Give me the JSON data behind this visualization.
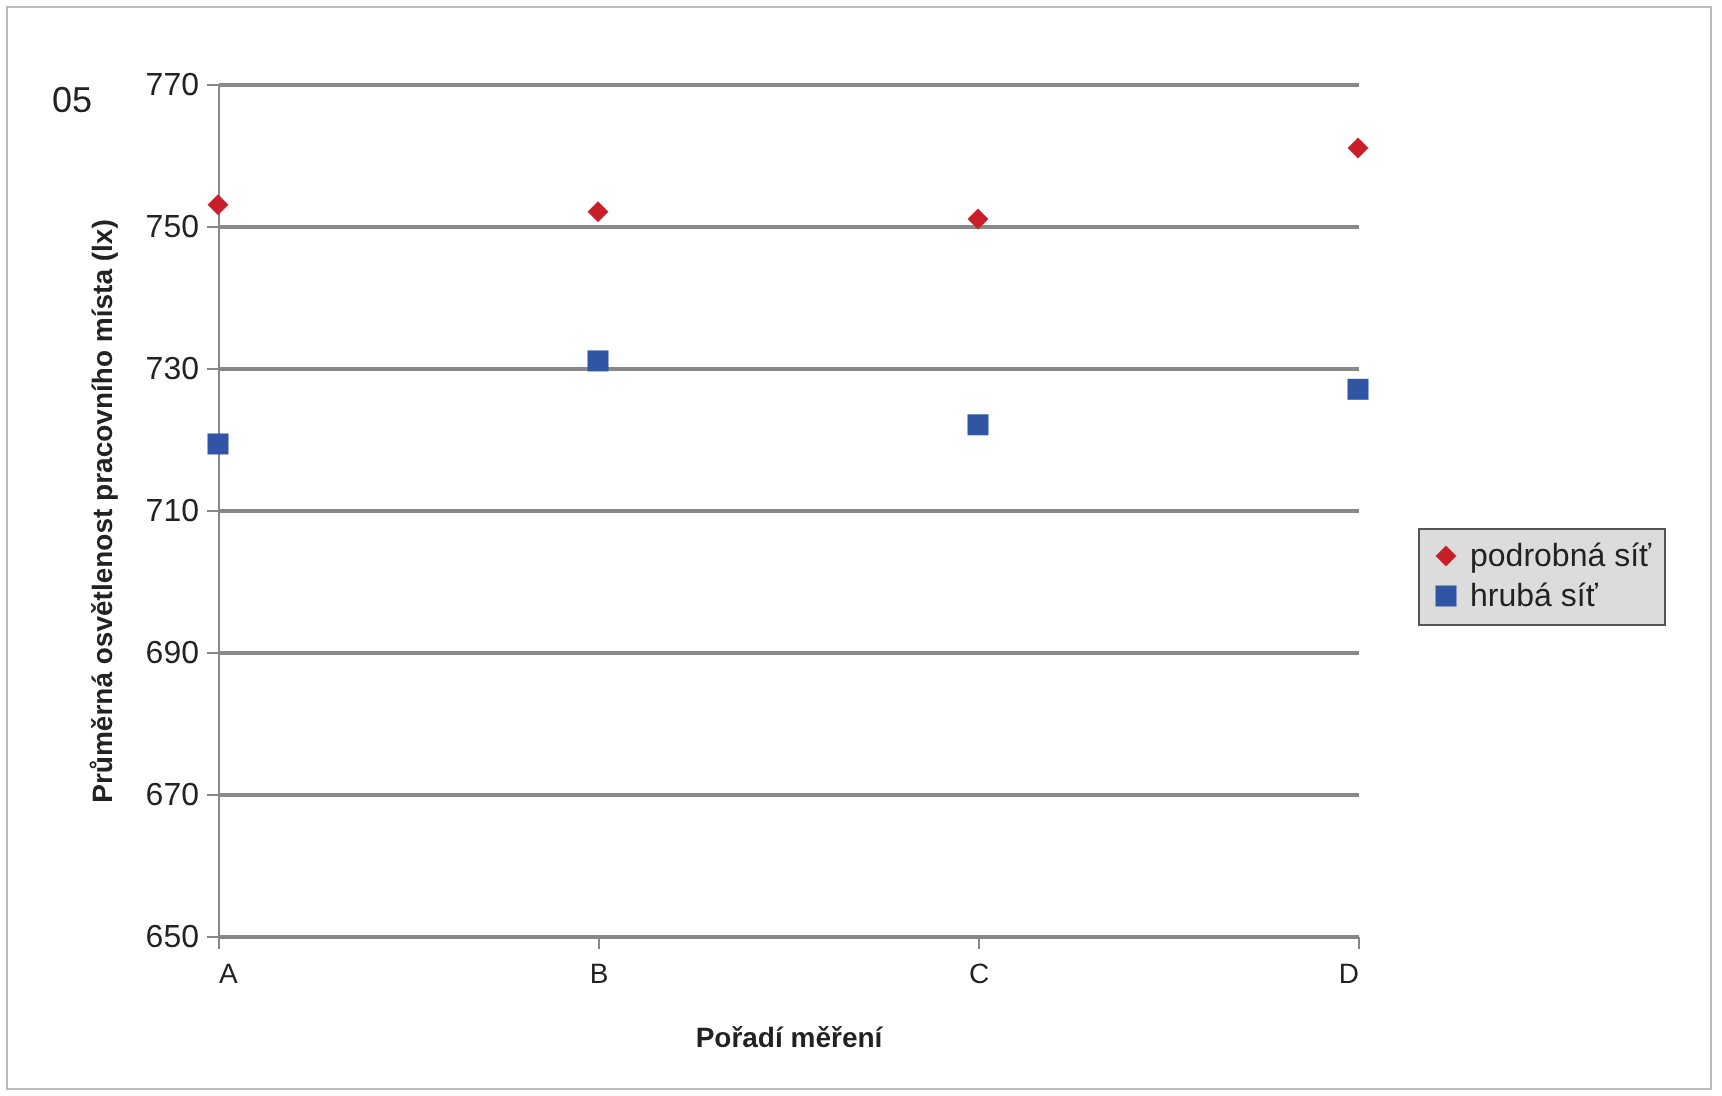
{
  "chart_data": {
    "type": "scatter",
    "xlabel": "Pořadí měření",
    "ylabel": "Průměrná osvětlenost pracovního místa (lx)",
    "categories": [
      "A",
      "B",
      "C",
      "D"
    ],
    "series": [
      {
        "name": "podrobná síť",
        "color": "#c8202a",
        "marker": "diamond",
        "values": [
          753,
          752,
          751,
          761
        ]
      },
      {
        "name": "hrubá síť",
        "color": "#2f55a4",
        "marker": "square",
        "values": [
          719.3,
          731,
          722,
          727
        ]
      }
    ],
    "ylim": [
      650,
      770
    ],
    "yticks": [
      650,
      670,
      690,
      710,
      730,
      750,
      770
    ],
    "grid": "y",
    "legend": "right",
    "annotations": [
      "05"
    ]
  }
}
